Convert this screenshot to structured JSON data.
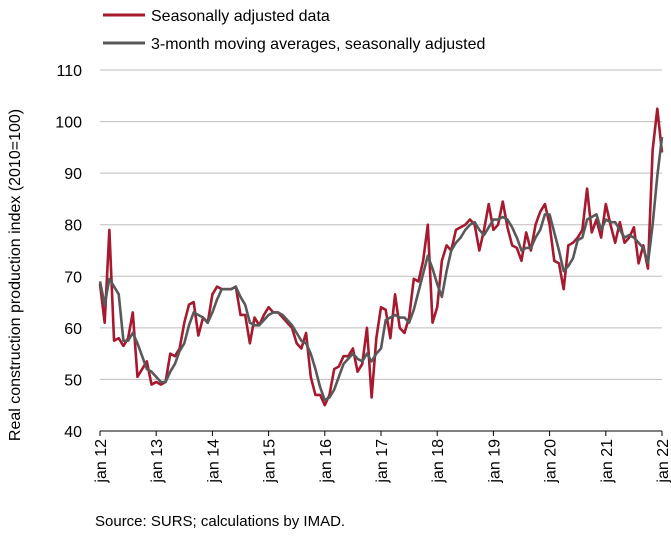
{
  "chart_data": {
    "type": "line",
    "title": "",
    "xlabel": "",
    "ylabel": "Real construction production index (2010=100)",
    "ylim": [
      40,
      110
    ],
    "yticks": [
      40,
      50,
      60,
      70,
      80,
      90,
      100,
      110
    ],
    "xticks": [
      "jan 12",
      "jan 13",
      "jan 14",
      "jan 15",
      "jan 16",
      "jan 17",
      "jan 18",
      "jan 19",
      "jan 20",
      "jan 21",
      "jan 22"
    ],
    "x_start": "2012-01",
    "x_end": "2022-03",
    "grid": "horizontal",
    "legend_position": "top-left",
    "series": [
      {
        "name": "Seasonally adjusted data",
        "color": "#a6192e",
        "values": [
          68.5,
          61,
          79,
          57.5,
          58,
          56.5,
          58,
          63,
          50.5,
          52,
          53.5,
          49,
          49.5,
          49,
          49.5,
          55,
          54.5,
          56,
          61,
          64.5,
          65,
          58.5,
          62,
          61,
          66.5,
          68,
          67.5,
          67.5,
          67.5,
          68,
          62.5,
          62.5,
          57,
          62,
          60.5,
          62.5,
          64,
          63,
          63,
          62,
          61,
          60,
          57,
          56,
          59,
          50.5,
          47,
          47,
          45,
          47,
          52,
          52.5,
          54.5,
          54.5,
          56,
          51.5,
          53,
          60,
          46.5,
          58,
          64,
          63.5,
          58,
          66.5,
          60,
          59,
          62,
          69.5,
          69,
          73,
          80,
          61,
          64,
          73,
          76,
          75,
          79,
          79.5,
          80,
          81,
          80,
          75,
          79,
          84,
          79,
          80,
          84.5,
          79.5,
          76,
          75.5,
          73,
          78.5,
          75,
          80,
          82.5,
          84,
          80,
          73,
          72.5,
          67.5,
          76,
          76.5,
          77.5,
          79,
          87,
          78.5,
          81,
          77.5,
          84,
          80,
          76.5,
          80.5,
          76.5,
          77.5,
          79.5,
          72.5,
          76,
          71.5,
          94.5,
          102.5,
          94
        ]
      },
      {
        "name": "3-month moving averages, seasonally adjusted",
        "color": "#595959",
        "values": [
          69,
          64.5,
          69.5,
          68,
          66.5,
          57.5,
          57.5,
          59,
          57,
          54.5,
          52,
          51.5,
          50.5,
          49.5,
          49.5,
          51.5,
          53,
          55.5,
          57,
          60.5,
          63,
          62.5,
          62,
          61,
          63,
          65.5,
          67.5,
          67.5,
          67.5,
          68,
          66,
          64.5,
          61,
          60.5,
          60.5,
          61.5,
          62.5,
          63,
          63,
          62.5,
          61.5,
          60.5,
          59,
          57.5,
          57,
          55,
          52,
          48.5,
          46,
          46.5,
          48,
          50.5,
          53,
          54,
          55,
          54,
          53.5,
          55,
          53.5,
          55,
          56,
          61.5,
          62,
          62.5,
          62,
          62,
          61,
          63.5,
          67,
          70.5,
          74,
          71.5,
          68.5,
          66,
          71,
          75,
          76.5,
          77.5,
          79,
          80,
          80.5,
          79,
          78,
          79.5,
          81,
          81,
          81.5,
          81,
          79.5,
          77.5,
          75,
          75.5,
          75.5,
          77.5,
          79,
          82,
          82,
          78.5,
          75,
          71,
          72,
          73.5,
          77,
          77.5,
          81,
          81.5,
          82,
          79,
          81,
          80.5,
          80.5,
          79,
          77.5,
          78,
          77.5,
          76.5,
          75.5,
          72.5,
          80,
          89.5,
          97
        ]
      }
    ]
  },
  "source_text": "Source: SURS; calculations by IMAD."
}
